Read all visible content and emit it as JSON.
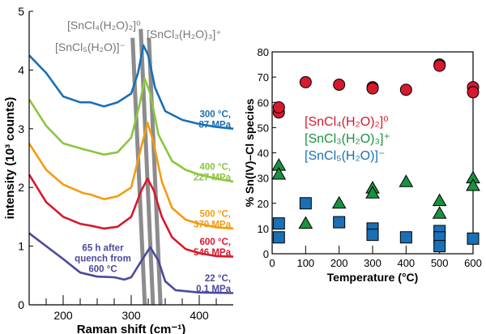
{
  "chart_data": [
    {
      "type": "line",
      "xlabel": "Raman shift (cm⁻¹)",
      "ylabel": "intensity (10³ counts)",
      "xlim": [
        150,
        450
      ],
      "ylim": [
        0,
        5
      ],
      "xticks": [
        200,
        300,
        400
      ],
      "yticks": [
        0,
        1,
        2,
        3,
        4,
        5
      ],
      "grid": false,
      "series": [
        {
          "name": "300 °C, 87 MPa",
          "label_lines": [
            "300 °C,",
            "87 MPa"
          ],
          "color": "#1a6fb5",
          "points": [
            [
              150,
              4.25
            ],
            [
              175,
              3.95
            ],
            [
              200,
              3.55
            ],
            [
              225,
              3.45
            ],
            [
              240,
              3.45
            ],
            [
              260,
              3.38
            ],
            [
              280,
              3.45
            ],
            [
              300,
              3.6
            ],
            [
              310,
              3.95
            ],
            [
              318,
              4.42
            ],
            [
              325,
              4.25
            ],
            [
              335,
              3.7
            ],
            [
              350,
              3.3
            ],
            [
              375,
              3.15
            ],
            [
              400,
              3.08
            ],
            [
              425,
              3.03
            ],
            [
              450,
              3.0
            ]
          ]
        },
        {
          "name": "400 °C, 227 MPa",
          "label_lines": [
            "400 °C,",
            "227 MPa"
          ],
          "color": "#8cc63f",
          "points": [
            [
              150,
              3.5
            ],
            [
              175,
              3.05
            ],
            [
              200,
              2.75
            ],
            [
              230,
              2.65
            ],
            [
              240,
              2.62
            ],
            [
              260,
              2.56
            ],
            [
              280,
              2.6
            ],
            [
              300,
              2.85
            ],
            [
              312,
              3.4
            ],
            [
              320,
              3.85
            ],
            [
              328,
              3.6
            ],
            [
              340,
              2.9
            ],
            [
              360,
              2.45
            ],
            [
              380,
              2.3
            ],
            [
              400,
              2.22
            ],
            [
              425,
              2.15
            ],
            [
              450,
              2.1
            ]
          ]
        },
        {
          "name": "500 °C, 370 MPa",
          "label_lines": [
            "500 °C,",
            "370 MPa"
          ],
          "color": "#f39c12",
          "points": [
            [
              150,
              2.75
            ],
            [
              175,
              2.3
            ],
            [
              200,
              2.05
            ],
            [
              230,
              1.9
            ],
            [
              240,
              1.88
            ],
            [
              260,
              1.8
            ],
            [
              280,
              1.85
            ],
            [
              300,
              2.0
            ],
            [
              315,
              2.7
            ],
            [
              324,
              3.1
            ],
            [
              332,
              2.8
            ],
            [
              345,
              2.1
            ],
            [
              360,
              1.65
            ],
            [
              380,
              1.45
            ],
            [
              400,
              1.38
            ],
            [
              425,
              1.32
            ],
            [
              450,
              1.3
            ]
          ]
        },
        {
          "name": "600 °C, 546 MPa",
          "label_lines": [
            "600 °C,",
            "546 MPa"
          ],
          "color": "#d7192d",
          "points": [
            [
              150,
              2.22
            ],
            [
              175,
              1.75
            ],
            [
              200,
              1.5
            ],
            [
              225,
              1.38
            ],
            [
              240,
              1.35
            ],
            [
              260,
              1.3
            ],
            [
              280,
              1.33
            ],
            [
              300,
              1.5
            ],
            [
              315,
              1.95
            ],
            [
              324,
              2.15
            ],
            [
              333,
              1.95
            ],
            [
              345,
              1.5
            ],
            [
              360,
              1.15
            ],
            [
              380,
              0.95
            ],
            [
              400,
              0.88
            ],
            [
              425,
              0.83
            ],
            [
              450,
              0.82
            ]
          ]
        },
        {
          "name": "22 °C, 0.1 MPa",
          "label_lines": [
            "22 °C,",
            "0.1 MPa"
          ],
          "color": "#4b4a9a",
          "points": [
            [
              150,
              1.22
            ],
            [
              175,
              1.0
            ],
            [
              200,
              0.78
            ],
            [
              225,
              0.55
            ],
            [
              250,
              0.48
            ],
            [
              275,
              0.47
            ],
            [
              290,
              0.43
            ],
            [
              300,
              0.47
            ],
            [
              315,
              0.75
            ],
            [
              328,
              0.98
            ],
            [
              340,
              0.75
            ],
            [
              350,
              0.4
            ],
            [
              365,
              0.25
            ],
            [
              400,
              0.21
            ],
            [
              450,
              0.2
            ]
          ]
        }
      ],
      "annotations": {
        "quench_lines": [
          "65 h after",
          "quench from",
          "600 °C"
        ],
        "quench_color": "#4b4a9a",
        "bands": [
          {
            "label": "[SnCl₅(H₂O)]⁻",
            "top": [
              302,
              4.55
            ],
            "bottom": [
              320,
              0
            ]
          },
          {
            "label": "[SnCl₄(H₂O)₂]⁰",
            "top": [
              314,
              4.7
            ],
            "bottom": [
              332,
              0
            ]
          },
          {
            "label": "[SnCl₃(H₂O)₃]⁺",
            "top": [
              326,
              4.55
            ],
            "bottom": [
              343,
              0
            ]
          }
        ],
        "band_color": "#8c8c8c"
      }
    },
    {
      "type": "scatter",
      "xlabel": "Temperature (°C)",
      "ylabel": "% Sn(IV)–Cl species",
      "xlim": [
        0,
        600
      ],
      "ylim": [
        0,
        80
      ],
      "xticks": [
        0,
        100,
        200,
        300,
        400,
        500,
        600
      ],
      "yticks": [
        0,
        10,
        20,
        30,
        40,
        50,
        60,
        70,
        80
      ],
      "grid": false,
      "legend": "center-left",
      "series": [
        {
          "name": "[SnCl₄(H₂O)₂]⁰",
          "marker": "circle",
          "color": "#d7192d",
          "points": [
            [
              20,
              56
            ],
            [
              20,
              58
            ],
            [
              100,
              68
            ],
            [
              200,
              67
            ],
            [
              300,
              66
            ],
            [
              300,
              65.5
            ],
            [
              400,
              65
            ],
            [
              500,
              75
            ],
            [
              500,
              74.5
            ],
            [
              600,
              66
            ],
            [
              600,
              64
            ]
          ]
        },
        {
          "name": "[SnCl₃(H₂O)₃]⁺",
          "marker": "triangle",
          "color": "#1a9140",
          "points": [
            [
              20,
              35
            ],
            [
              20,
              31.5
            ],
            [
              100,
              12
            ],
            [
              200,
              20
            ],
            [
              300,
              26
            ],
            [
              300,
              24
            ],
            [
              400,
              28.5
            ],
            [
              500,
              21
            ],
            [
              500,
              16
            ],
            [
              600,
              30
            ],
            [
              600,
              27
            ]
          ]
        },
        {
          "name": "[SnCl₅(H₂O)]⁻",
          "marker": "square",
          "color": "#1a6fb5",
          "points": [
            [
              20,
              12
            ],
            [
              20,
              6.5
            ],
            [
              100,
              20
            ],
            [
              200,
              12.5
            ],
            [
              300,
              10
            ],
            [
              300,
              7.5
            ],
            [
              400,
              6.5
            ],
            [
              500,
              9
            ],
            [
              500,
              6.5
            ],
            [
              500,
              3
            ],
            [
              600,
              6
            ]
          ]
        }
      ]
    }
  ]
}
